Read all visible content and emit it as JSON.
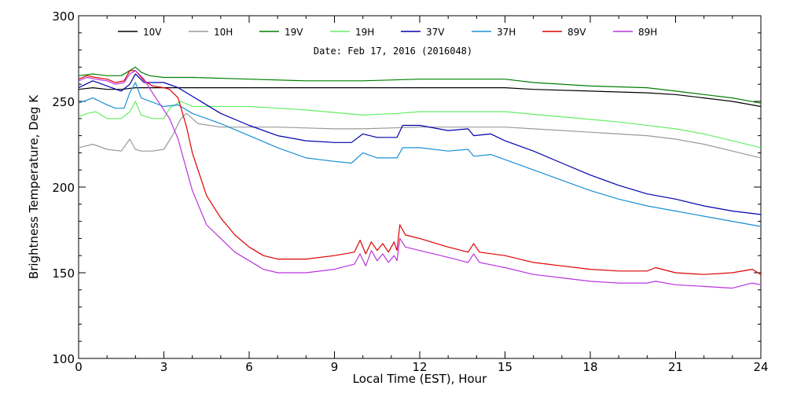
{
  "chart_data": {
    "type": "line",
    "annotation": "Date: Feb 17, 2016 (2016048)",
    "xlabel": "Local Time (EST), Hour",
    "ylabel": "Brightness Temperature, Deg K",
    "xlim": [
      0,
      24
    ],
    "ylim": [
      100,
      300
    ],
    "xticks": [
      0,
      3,
      6,
      9,
      12,
      15,
      18,
      21,
      24
    ],
    "yticks": [
      100,
      150,
      200,
      250,
      300
    ],
    "grid": false,
    "legend_position": "top",
    "series": [
      {
        "name": "10V",
        "color": "#000000",
        "x": [
          0,
          0.5,
          1,
          1.5,
          2,
          2.5,
          3,
          4,
          5,
          6,
          8,
          10,
          12,
          14,
          15,
          16,
          18,
          20,
          21,
          22,
          23,
          24
        ],
        "y": [
          257,
          258,
          257,
          257,
          258,
          258,
          258,
          258,
          258,
          258,
          258,
          258,
          258,
          258,
          258,
          257,
          256,
          255,
          254,
          252,
          250,
          247
        ]
      },
      {
        "name": "10H",
        "color": "#999999",
        "x": [
          0,
          0.5,
          1,
          1.5,
          1.8,
          2,
          2.2,
          2.6,
          3,
          3.3,
          3.6,
          3.8,
          4.2,
          5,
          6,
          7,
          9,
          10,
          12,
          13,
          15,
          16,
          18,
          20,
          21,
          22,
          23,
          24
        ],
        "y": [
          223,
          225,
          222,
          221,
          228,
          222,
          221,
          221,
          222,
          230,
          240,
          243,
          237,
          235,
          235,
          235,
          234,
          234,
          235,
          235,
          235,
          234,
          232,
          230,
          228,
          225,
          221,
          217
        ]
      },
      {
        "name": "19V",
        "color": "#008000",
        "x": [
          0,
          0.5,
          1,
          1.5,
          1.8,
          2,
          2.2,
          2.5,
          3,
          4,
          6,
          8,
          10,
          12,
          14,
          15,
          16,
          18,
          20,
          21,
          22,
          23,
          24
        ],
        "y": [
          265,
          266,
          265,
          265,
          268,
          270,
          267,
          265,
          264,
          264,
          263,
          262,
          262,
          263,
          263,
          263,
          261,
          259,
          258,
          256,
          254,
          252,
          249
        ]
      },
      {
        "name": "19H",
        "color": "#66ee66",
        "x": [
          0,
          0.3,
          0.6,
          1,
          1.2,
          1.5,
          1.8,
          2,
          2.2,
          2.6,
          3,
          3.2,
          3.6,
          4,
          6,
          8,
          10,
          11.2,
          12,
          15,
          17,
          19,
          21,
          22,
          23,
          24
        ],
        "y": [
          241,
          243,
          244,
          240,
          240,
          240,
          244,
          250,
          242,
          240,
          240,
          246,
          250,
          247,
          247,
          245,
          242,
          243,
          244,
          244,
          241,
          238,
          234,
          231,
          227,
          223
        ]
      },
      {
        "name": "37V",
        "color": "#0000aa",
        "x": [
          0,
          0.5,
          1,
          1.5,
          1.8,
          2,
          2.3,
          3,
          3.5,
          4,
          5,
          6,
          7,
          8,
          9,
          9.6,
          10,
          10.5,
          11.2,
          11.4,
          12,
          13,
          13.7,
          13.9,
          14.5,
          15,
          16,
          17,
          18,
          19,
          20,
          21,
          22,
          23,
          24
        ],
        "y": [
          258,
          262,
          259,
          256,
          260,
          266,
          261,
          261,
          258,
          253,
          243,
          236,
          230,
          227,
          226,
          226,
          231,
          229,
          229,
          236,
          236,
          233,
          234,
          230,
          231,
          227,
          221,
          214,
          207,
          201,
          196,
          193,
          189,
          186,
          184
        ]
      },
      {
        "name": "37H",
        "color": "#1a8fd6",
        "x": [
          0,
          0.5,
          1,
          1.3,
          1.6,
          1.8,
          2,
          2.2,
          3,
          3.5,
          4,
          5,
          6,
          7,
          8,
          9,
          9.6,
          10,
          10.5,
          11.2,
          11.4,
          12,
          13,
          13.7,
          13.9,
          14.5,
          15,
          16,
          17,
          18,
          19,
          20,
          21,
          22,
          23,
          24
        ],
        "y": [
          249,
          252,
          248,
          246,
          246,
          255,
          261,
          252,
          247,
          248,
          243,
          237,
          230,
          223,
          217,
          215,
          214,
          220,
          217,
          217,
          223,
          223,
          221,
          222,
          218,
          219,
          216,
          210,
          204,
          198,
          193,
          189,
          186,
          183,
          180,
          177
        ]
      },
      {
        "name": "89V",
        "color": "#dd0000",
        "x": [
          0,
          0.3,
          0.6,
          1,
          1.3,
          1.6,
          1.8,
          2,
          2.3,
          2.6,
          3,
          3.2,
          3.5,
          3.8,
          4,
          4.5,
          5,
          5.5,
          6,
          6.5,
          7,
          8,
          9,
          9.7,
          9.9,
          10.1,
          10.3,
          10.5,
          10.7,
          10.9,
          11.1,
          11.2,
          11.3,
          11.5,
          12,
          13,
          13.7,
          13.9,
          14.1,
          15,
          16,
          17,
          18,
          19,
          20,
          20.3,
          21,
          22,
          23,
          23.7,
          24
        ],
        "y": [
          263,
          265,
          264,
          263,
          261,
          262,
          268,
          268,
          262,
          259,
          258,
          257,
          252,
          235,
          220,
          195,
          182,
          172,
          165,
          160,
          158,
          158,
          160,
          162,
          169,
          161,
          168,
          163,
          167,
          162,
          168,
          163,
          178,
          172,
          170,
          165,
          162,
          167,
          162,
          160,
          156,
          154,
          152,
          151,
          151,
          153,
          150,
          149,
          150,
          152,
          149
        ]
      },
      {
        "name": "89H",
        "color": "#bb33dd",
        "x": [
          0,
          0.3,
          0.6,
          1,
          1.3,
          1.6,
          1.8,
          2,
          2.3,
          2.6,
          3,
          3.2,
          3.5,
          3.8,
          4,
          4.5,
          5,
          5.5,
          6,
          6.5,
          7,
          8,
          9,
          9.7,
          9.9,
          10.1,
          10.3,
          10.5,
          10.7,
          10.9,
          11.1,
          11.2,
          11.3,
          11.5,
          12,
          13,
          13.7,
          13.9,
          14.1,
          15,
          16,
          17,
          18,
          19,
          20,
          20.3,
          21,
          22,
          23,
          23.7,
          24
        ],
        "y": [
          262,
          264,
          263,
          262,
          260,
          261,
          266,
          268,
          263,
          255,
          245,
          240,
          228,
          210,
          198,
          178,
          170,
          162,
          157,
          152,
          150,
          150,
          152,
          155,
          161,
          154,
          163,
          157,
          161,
          156,
          160,
          157,
          170,
          165,
          163,
          159,
          156,
          161,
          156,
          153,
          149,
          147,
          145,
          144,
          144,
          145,
          143,
          142,
          141,
          144,
          143
        ]
      }
    ]
  }
}
